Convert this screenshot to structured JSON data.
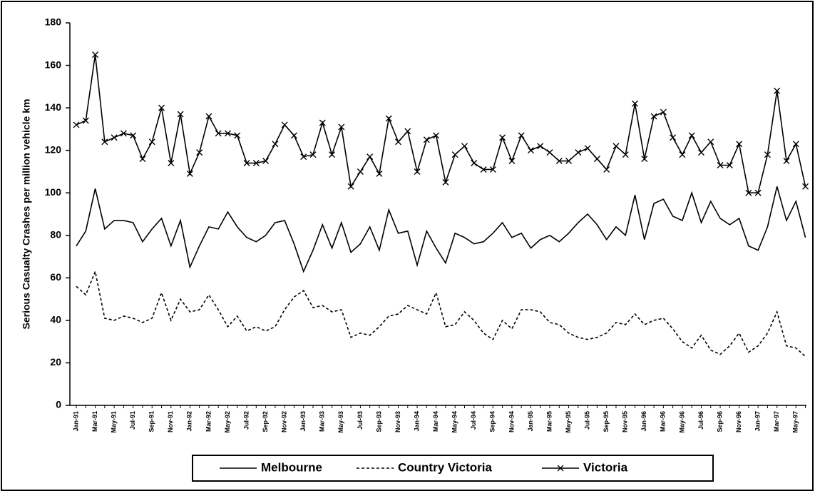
{
  "chart_data": {
    "type": "line",
    "y_label": "Serious Casualty Crashes per million vehicle km",
    "categories": [
      "Jan-91",
      null,
      "Mar-91",
      null,
      "May-91",
      null,
      "Jul-91",
      null,
      "Sep-91",
      null,
      "Nov-91",
      null,
      "Jan-92",
      null,
      "Mar-92",
      null,
      "May-92",
      null,
      "Jul-92",
      null,
      "Sep-92",
      null,
      "Nov-92",
      null,
      "Jan-93",
      null,
      "Mar-93",
      null,
      "May-93",
      null,
      "Jul-93",
      null,
      "Sep-93",
      null,
      "Nov-93",
      null,
      "Jan-94",
      null,
      "Mar-94",
      null,
      "May-94",
      null,
      "Jul-94",
      null,
      "Sep-94",
      null,
      "Nov-94",
      null,
      "Jan-95",
      null,
      "Mar-95",
      null,
      "May-95",
      null,
      "Jul-95",
      null,
      "Sep-95",
      null,
      "Nov-95",
      null,
      "Jan-96",
      null,
      "Mar-96",
      null,
      "May-96",
      null,
      "Jul-96",
      null,
      "Sep-96",
      null,
      "Nov-96",
      null,
      "Jan-97",
      null,
      "Mar-97",
      null,
      "May-97",
      null
    ],
    "series": [
      {
        "name": "Melbourne",
        "color": "#000000",
        "dash": "solid",
        "marker": "none",
        "values": [
          75,
          82,
          102,
          83,
          87,
          87,
          86,
          77,
          83,
          88,
          75,
          87,
          65,
          75,
          84,
          83,
          91,
          84,
          79,
          77,
          80,
          86,
          87,
          76,
          63,
          73,
          85,
          74,
          86,
          72,
          76,
          84,
          73,
          92,
          81,
          82,
          66,
          82,
          74,
          67,
          81,
          79,
          76,
          77,
          81,
          86,
          79,
          81,
          74,
          78,
          80,
          77,
          81,
          86,
          90,
          85,
          78,
          84,
          80,
          99,
          78,
          95,
          97,
          89,
          87,
          100,
          86,
          96,
          88,
          85,
          88,
          75,
          73,
          84,
          103,
          87,
          96,
          79
        ]
      },
      {
        "name": "Country Victoria",
        "color": "#000000",
        "dash": "dotted",
        "marker": "none",
        "values": [
          56,
          52,
          63,
          41,
          40,
          42,
          41,
          39,
          41,
          53,
          40,
          50,
          44,
          45,
          52,
          45,
          37,
          42,
          35,
          37,
          35,
          37,
          45,
          51,
          54,
          46,
          47,
          44,
          45,
          32,
          34,
          33,
          37,
          42,
          43,
          47,
          45,
          43,
          53,
          37,
          38,
          44,
          40,
          34,
          31,
          40,
          36,
          45,
          45,
          44,
          39,
          38,
          34,
          32,
          31,
          32,
          34,
          39,
          38,
          43,
          38,
          40,
          41,
          36,
          30,
          27,
          33,
          26,
          24,
          28,
          34,
          25,
          28,
          34,
          44,
          28,
          27,
          23
        ]
      },
      {
        "name": "Victoria",
        "color": "#000000",
        "dash": "solid",
        "marker": "x",
        "values": [
          132,
          134,
          165,
          124,
          126,
          128,
          127,
          116,
          124,
          140,
          114,
          137,
          109,
          119,
          136,
          128,
          128,
          127,
          114,
          114,
          115,
          123,
          132,
          127,
          117,
          118,
          133,
          118,
          131,
          103,
          110,
          117,
          109,
          135,
          124,
          129,
          110,
          125,
          127,
          105,
          118,
          122,
          114,
          111,
          111,
          126,
          115,
          127,
          120,
          122,
          119,
          115,
          115,
          119,
          121,
          116,
          111,
          122,
          118,
          142,
          116,
          136,
          138,
          126,
          118,
          127,
          119,
          124,
          113,
          113,
          123,
          100,
          100,
          118,
          148,
          115,
          123,
          103
        ]
      }
    ],
    "ylim": [
      0,
      180
    ],
    "yticks": [
      0,
      20,
      40,
      60,
      80,
      100,
      120,
      140,
      160,
      180
    ],
    "grid": false,
    "legend": "bottom"
  }
}
